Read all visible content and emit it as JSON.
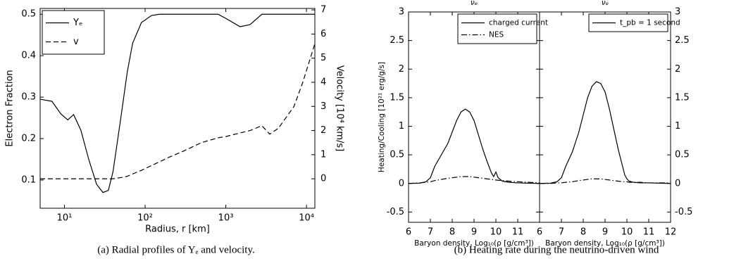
{
  "chart_data": [
    {
      "type": "line",
      "caption": "(a) Radial profiles of Yₑ and velocity.",
      "xlabel": "Radius, r [km]",
      "ylabel": "Electron Fraction",
      "y2label": "Velocity [10⁴ km/s]",
      "log_x": true,
      "xlim": [
        5,
        12700
      ],
      "ylim": [
        0.032,
        0.514
      ],
      "y2lim": [
        -1.22,
        7.06
      ],
      "xticks": [
        {
          "value": 10,
          "label": "10¹"
        },
        {
          "value": 100,
          "label": "10²"
        },
        {
          "value": 1000,
          "label": "10³"
        },
        {
          "value": 10000,
          "label": "10⁴"
        }
      ],
      "yticks": [
        0.1,
        0.2,
        0.3,
        0.4,
        0.5
      ],
      "y2ticks": [
        0,
        1,
        2,
        3,
        4,
        5,
        6,
        7
      ],
      "legend": "upper left",
      "x": [
        5,
        7,
        9,
        11,
        13,
        16,
        20,
        25,
        30,
        35,
        40,
        50,
        60,
        70,
        90,
        120,
        150,
        200,
        300,
        500,
        800,
        1000,
        1500,
        2000,
        2800,
        3500,
        4500,
        7000,
        9000,
        12700
      ],
      "series": [
        {
          "name": "Yₑ",
          "color": "#000000",
          "dash": "solid",
          "values": [
            0.295,
            0.29,
            0.26,
            0.245,
            0.258,
            0.22,
            0.15,
            0.09,
            0.07,
            0.075,
            0.12,
            0.25,
            0.36,
            0.43,
            0.48,
            0.497,
            0.5,
            0.5,
            0.5,
            0.5,
            0.5,
            0.49,
            0.47,
            0.475,
            0.5,
            0.5,
            0.5,
            0.5,
            0.5,
            0.5
          ]
        },
        {
          "name": "v",
          "color": "#000000",
          "dash": "dashed",
          "axis": "y2",
          "values": [
            0,
            0,
            0,
            0,
            0,
            0,
            0,
            0,
            0,
            0,
            0,
            0.05,
            0.1,
            0.2,
            0.35,
            0.55,
            0.7,
            0.9,
            1.15,
            1.5,
            1.7,
            1.75,
            1.9,
            2.0,
            2.2,
            1.85,
            2.1,
            3.0,
            4.0,
            5.6
          ]
        }
      ]
    },
    {
      "type": "line",
      "title": "νₑ",
      "caption": "(b) Heating rate during the neutrino-driven wind",
      "xlabel": "Baryon density, Log₁₀(ρ [g/cm³])",
      "ylabel": "Heating/Cooling [10²¹ erg/g/s]",
      "xlim": [
        6,
        12
      ],
      "ylim": [
        -0.68,
        3
      ],
      "xticks": [
        6,
        7,
        8,
        9,
        10,
        11
      ],
      "yticks": [
        -0.5,
        0,
        0.5,
        1,
        1.5,
        2,
        2.5,
        3
      ],
      "ytick_side": "left",
      "legend": "upper right",
      "x": [
        6,
        6.5,
        6.8,
        7,
        7.2,
        7.5,
        7.8,
        8,
        8.2,
        8.4,
        8.6,
        8.8,
        9,
        9.2,
        9.4,
        9.6,
        9.8,
        9.9,
        10,
        10.1,
        10.3,
        10.6,
        11,
        11.5,
        12
      ],
      "series": [
        {
          "name": "charged current",
          "color": "#000000",
          "dash": "solid",
          "values": [
            0,
            0.005,
            0.03,
            0.1,
            0.3,
            0.5,
            0.7,
            0.9,
            1.1,
            1.25,
            1.3,
            1.25,
            1.1,
            0.85,
            0.6,
            0.38,
            0.18,
            0.12,
            0.2,
            0.1,
            0.04,
            0.02,
            0.01,
            0.005,
            0
          ]
        },
        {
          "name": "NES",
          "color": "#000000",
          "dash": "dashdot",
          "values": [
            0,
            0.01,
            0.02,
            0.03,
            0.05,
            0.07,
            0.09,
            0.1,
            0.11,
            0.12,
            0.12,
            0.12,
            0.11,
            0.1,
            0.09,
            0.08,
            0.07,
            0.065,
            0.06,
            0.055,
            0.05,
            0.04,
            0.03,
            0.02,
            0.01
          ]
        }
      ]
    },
    {
      "type": "line",
      "title": "νₑ",
      "xlabel": "Baryon density, Log₁₀(ρ [g/cm³])",
      "xlim": [
        6,
        12
      ],
      "ylim": [
        -0.68,
        3
      ],
      "xticks": [
        6,
        7,
        8,
        9,
        10,
        11,
        12
      ],
      "yticks": [
        -0.5,
        0,
        0.5,
        1,
        1.5,
        2,
        2.5,
        3
      ],
      "ytick_side": "right",
      "legend": "upper right",
      "x": [
        6,
        6.5,
        6.8,
        7,
        7.2,
        7.5,
        7.8,
        8,
        8.2,
        8.4,
        8.6,
        8.8,
        9,
        9.2,
        9.4,
        9.6,
        9.8,
        9.9,
        10,
        10.1,
        10.3,
        10.6,
        11,
        11.5,
        12
      ],
      "series": [
        {
          "name": "t_pb = 1 second",
          "color": "#000000",
          "dash": "solid",
          "values": [
            0,
            0.005,
            0.03,
            0.1,
            0.3,
            0.55,
            0.9,
            1.2,
            1.5,
            1.7,
            1.78,
            1.75,
            1.6,
            1.3,
            0.95,
            0.6,
            0.3,
            0.15,
            0.08,
            0.04,
            0.02,
            0.01,
            0.01,
            0.005,
            0
          ]
        },
        {
          "color": "#000000",
          "dash": "dashdot",
          "values": [
            0,
            0,
            0.01,
            0.01,
            0.02,
            0.03,
            0.05,
            0.06,
            0.07,
            0.08,
            0.08,
            0.08,
            0.07,
            0.06,
            0.05,
            0.04,
            0.03,
            0.03,
            0.03,
            0.02,
            0.02,
            0.02,
            0.01,
            0.01,
            0.01
          ]
        }
      ]
    }
  ]
}
